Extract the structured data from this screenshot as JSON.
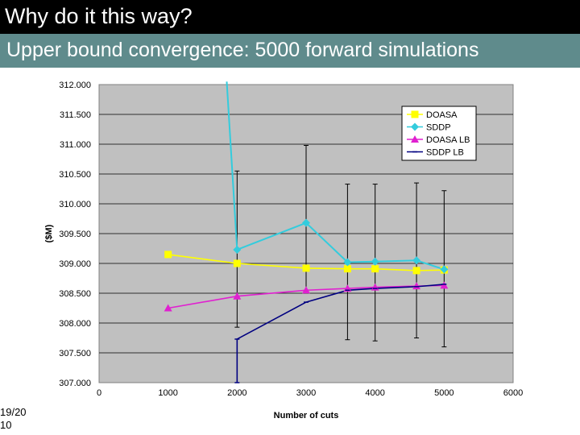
{
  "slide": {
    "title": "Why do it this way?",
    "subtitle": "Upper bound convergence: 5000 forward simulations",
    "date_line1": "19/20",
    "date_line2": "10"
  },
  "colors": {
    "title_bg": "#000000",
    "subtitle_bg": "#5f8b8c",
    "plot_bg": "#c0c0c0",
    "DOASA": "#ffff00",
    "SDDP": "#33ccdd",
    "DOASA LB": "#e020d0",
    "SDDP LB": "#000080"
  },
  "chart_data": {
    "type": "line",
    "xlabel": "Number of cuts",
    "ylabel": "($M)",
    "xlim": [
      0,
      6000
    ],
    "ylim": [
      307.0,
      312.0
    ],
    "x_ticks": [
      "0",
      "1000",
      "2000",
      "3000",
      "4000",
      "5000",
      "6000"
    ],
    "y_ticks": [
      "307.000",
      "307.500",
      "308.000",
      "308.500",
      "309.000",
      "309.500",
      "310.000",
      "310.500",
      "311.000",
      "311.500",
      "312.000"
    ],
    "grid": "horizontal",
    "legend_position": "top-right",
    "series": [
      {
        "name": "DOASA",
        "marker": "square",
        "x": [
          1000,
          2000,
          3000,
          3600,
          4000,
          4600,
          5000
        ],
        "y": [
          309.15,
          309.0,
          308.92,
          308.91,
          308.91,
          308.88,
          308.89
        ]
      },
      {
        "name": "SDDP",
        "marker": "diamond",
        "x": [
          1850,
          2000,
          3000,
          3600,
          4000,
          4600,
          5000
        ],
        "y": [
          312.05,
          309.23,
          309.68,
          309.02,
          309.03,
          309.05,
          308.9
        ],
        "marker_from_index": 1
      },
      {
        "name": "DOASA LB",
        "marker": "triangle",
        "x": [
          1000,
          2000,
          3000,
          3600,
          4000,
          4600,
          5000
        ],
        "y": [
          308.25,
          308.45,
          308.55,
          308.58,
          308.6,
          308.62,
          308.63
        ]
      },
      {
        "name": "SDDP LB",
        "marker": "dash",
        "x": [
          2000,
          2000,
          3000,
          3600,
          4000,
          4600,
          5000
        ],
        "y": [
          307.0,
          307.73,
          308.35,
          308.55,
          308.58,
          308.61,
          308.65
        ]
      }
    ],
    "error_bars": [
      {
        "x": 2000,
        "low": 307.93,
        "high": 310.55
      },
      {
        "x": 3000,
        "low": 308.5,
        "high": 310.98
      },
      {
        "x": 3600,
        "low": 307.72,
        "high": 310.33
      },
      {
        "x": 4000,
        "low": 307.7,
        "high": 310.33
      },
      {
        "x": 4600,
        "low": 307.75,
        "high": 310.35
      },
      {
        "x": 5000,
        "low": 307.6,
        "high": 310.22
      }
    ]
  }
}
